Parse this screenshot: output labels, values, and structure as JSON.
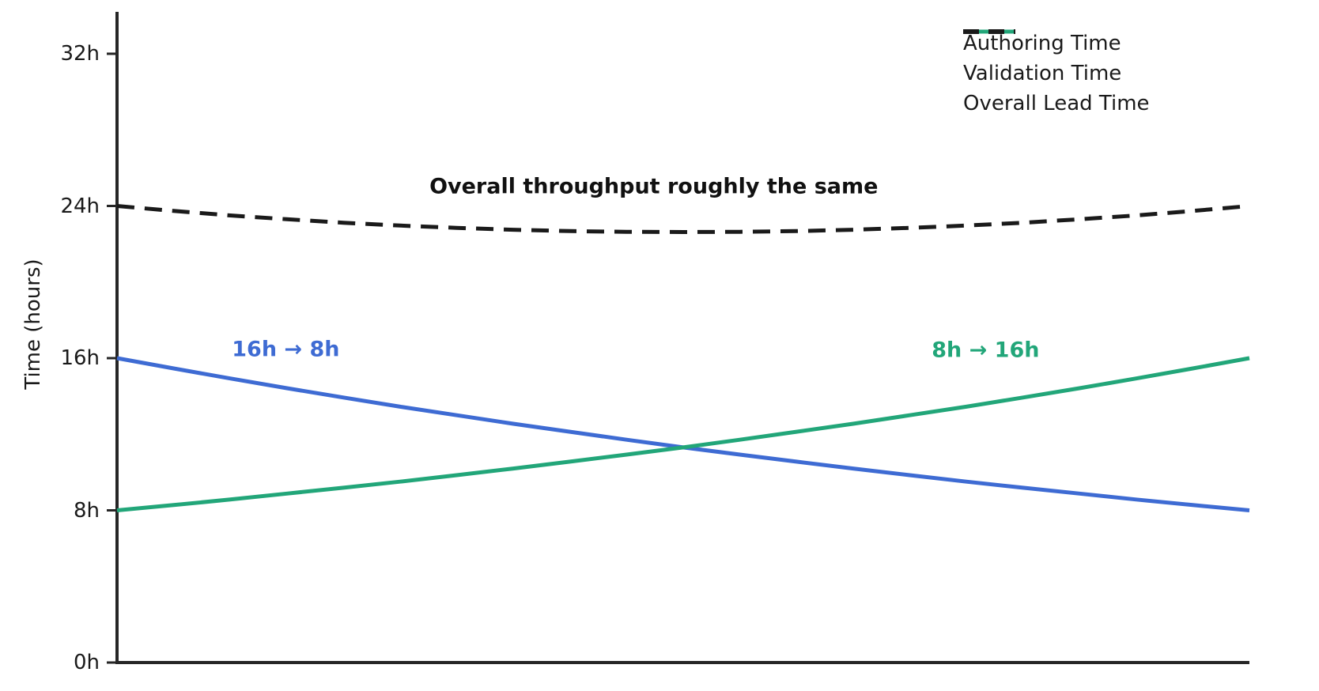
{
  "figure": {
    "background": "#ffffff",
    "axis_color": "#262626",
    "text_color": "#1a1a1a"
  },
  "chart_data": {
    "type": "line",
    "title": "",
    "xlabel": "",
    "ylabel": "Time (hours)",
    "x_axis": {
      "range": [
        0,
        1
      ],
      "tick_labels_visible": false
    },
    "ylim": [
      0,
      34
    ],
    "grid": false,
    "legend_position": "top-right",
    "legend_frame": false,
    "yticks": [
      {
        "value": 0,
        "label": "0h"
      },
      {
        "value": 8,
        "label": "8h"
      },
      {
        "value": 16,
        "label": "16h"
      },
      {
        "value": 24,
        "label": "24h"
      },
      {
        "value": 32,
        "label": "32h"
      }
    ],
    "x": [
      0,
      0.05,
      0.1,
      0.15,
      0.2,
      0.25,
      0.3,
      0.35,
      0.4,
      0.45,
      0.5,
      0.55,
      0.6,
      0.65,
      0.7,
      0.75,
      0.8,
      0.85,
      0.9,
      0.95,
      1
    ],
    "series": [
      {
        "name": "Authoring Time",
        "color": "#3e6bd3",
        "style": "solid",
        "start_value": 16,
        "end_value": 8,
        "values": [
          16,
          15.46,
          14.93,
          14.42,
          13.93,
          13.45,
          13.0,
          12.55,
          12.13,
          11.71,
          11.31,
          10.93,
          10.56,
          10.2,
          9.85,
          9.51,
          9.19,
          8.88,
          8.57,
          8.28,
          8
        ]
      },
      {
        "name": "Validation Time",
        "color": "#22a679",
        "style": "solid",
        "start_value": 8,
        "end_value": 16,
        "values": [
          8,
          8.28,
          8.57,
          8.88,
          9.19,
          9.51,
          9.85,
          10.2,
          10.56,
          10.93,
          11.31,
          11.71,
          12.13,
          12.55,
          13.0,
          13.45,
          13.93,
          14.42,
          14.93,
          15.46,
          16
        ]
      },
      {
        "name": "Overall Lead Time",
        "color": "#1a1a1a",
        "style": "dashed",
        "start_value": 24,
        "end_value": 24,
        "values": [
          24,
          23.74,
          23.5,
          23.3,
          23.12,
          22.97,
          22.85,
          22.75,
          22.68,
          22.64,
          22.63,
          22.64,
          22.68,
          22.75,
          22.85,
          22.97,
          23.12,
          23.3,
          23.5,
          23.74,
          24
        ]
      }
    ],
    "annotations": [
      {
        "text": "Overall throughput roughly the same",
        "t": 0.474,
        "value": 25.0,
        "color": "#111111"
      },
      {
        "text": "16h → 8h",
        "t": 0.149,
        "value": 16.45,
        "color": "#3e6bd3"
      },
      {
        "text": "8h → 16h",
        "t": 0.767,
        "value": 16.4,
        "color": "#22a679"
      }
    ]
  }
}
